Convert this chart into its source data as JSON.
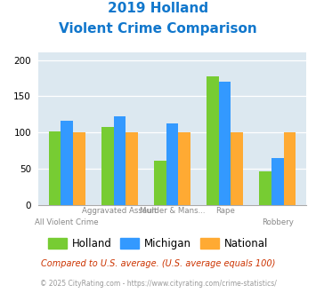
{
  "title_line1": "2019 Holland",
  "title_line2": "Violent Crime Comparison",
  "top_labels": [
    "",
    "Aggravated Assault",
    "Murder & Mans...",
    "Rape",
    ""
  ],
  "bot_labels": [
    "All Violent Crime",
    "",
    "",
    "",
    "Robbery"
  ],
  "holland": [
    101,
    108,
    61,
    177,
    46
  ],
  "michigan": [
    116,
    122,
    112,
    170,
    65
  ],
  "national": [
    100,
    100,
    100,
    100,
    100
  ],
  "holland_color": "#77cc33",
  "michigan_color": "#3399ff",
  "national_color": "#ffaa33",
  "title_color": "#1177cc",
  "plot_bg": "#dce8f0",
  "ylim": [
    0,
    210
  ],
  "yticks": [
    0,
    50,
    100,
    150,
    200
  ],
  "legend_labels": [
    "Holland",
    "Michigan",
    "National"
  ],
  "footnote1": "Compared to U.S. average. (U.S. average equals 100)",
  "footnote2": "© 2025 CityRating.com - https://www.cityrating.com/crime-statistics/",
  "footnote1_color": "#cc3300",
  "footnote2_color": "#999999"
}
